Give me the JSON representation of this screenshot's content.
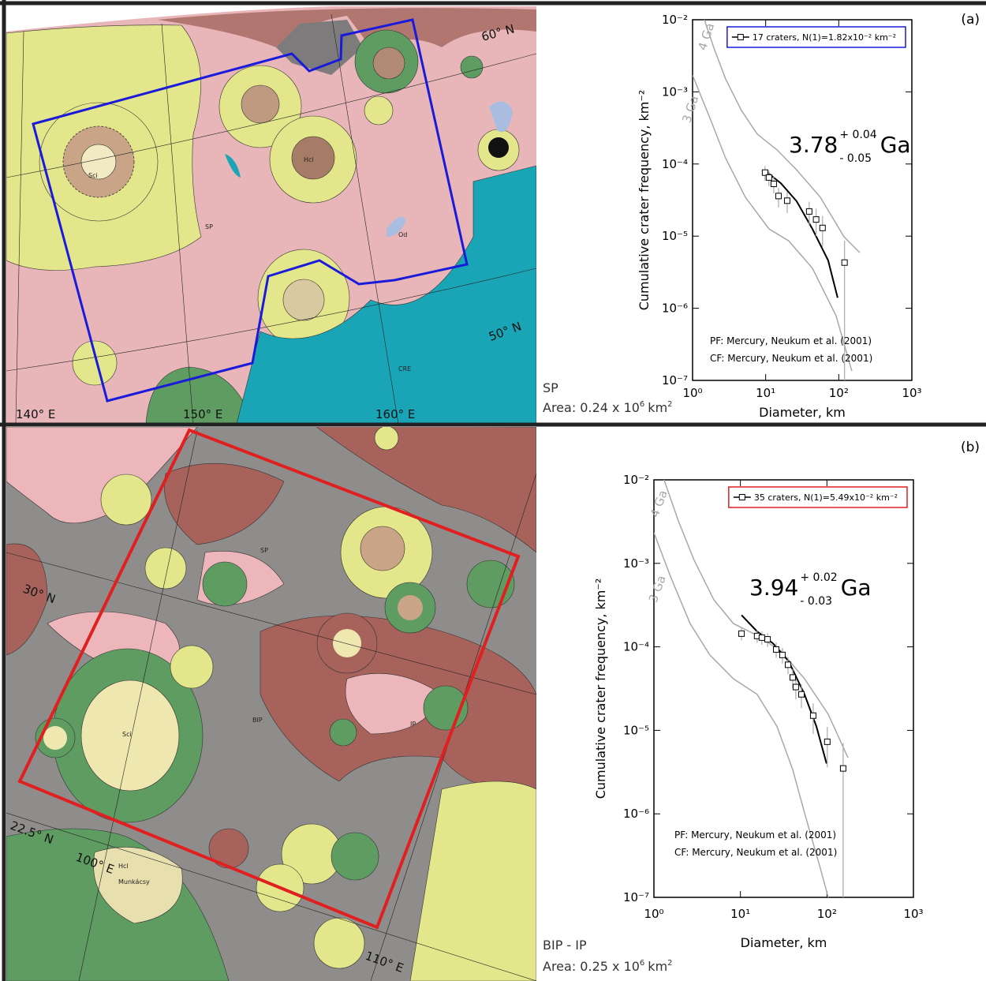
{
  "chart_data": [
    {
      "type": "scatter",
      "panel_label": "(a)",
      "unit_label": "SP",
      "area_label": {
        "text": "Area: 0.24 x 10",
        "exponent": "6",
        "unit": "km",
        "unit_exponent": "2"
      },
      "x_label": "Diameter, km",
      "y_label": "Cumulative crater frequency, km⁻²",
      "log_x": true,
      "log_y": true,
      "xlim": [
        1,
        1000
      ],
      "ylim": [
        1e-07,
        0.01
      ],
      "xticks": [
        {
          "value": 1,
          "label": "10⁰"
        },
        {
          "value": 10,
          "label": "10¹"
        },
        {
          "value": 100,
          "label": "10²"
        },
        {
          "value": 1000,
          "label": "10³"
        }
      ],
      "yticks": [
        {
          "value": 1e-07,
          "label": "10⁻⁷"
        },
        {
          "value": 1e-06,
          "label": "10⁻⁶"
        },
        {
          "value": 1e-05,
          "label": "10⁻⁵"
        },
        {
          "value": 0.0001,
          "label": "10⁻⁴"
        },
        {
          "value": 0.001,
          "label": "10⁻³"
        },
        {
          "value": 0.01,
          "label": "10⁻²"
        }
      ],
      "legend_color": "#1a1adb",
      "series": [
        {
          "name": "17 craters, N(1)=1.82x10⁻² km⁻²",
          "color": "#000000",
          "x": [
            9.8,
            11.1,
            12.9,
            15,
            19.7,
            39.4,
            49,
            60,
            120
          ],
          "values": [
            7.6e-05,
            6.5e-05,
            5.3e-05,
            3.6e-05,
            3.1e-05,
            2.2e-05,
            1.7e-05,
            1.3e-05,
            4.3e-06
          ],
          "errors": [
            1.8e-05,
            1.6e-05,
            1.4e-05,
            1.1e-05,
            1e-05,
            8e-06,
            7e-06,
            6e-06,
            4.3e-06
          ]
        }
      ],
      "fit": {
        "color": "#000000",
        "x": [
          9.8,
          16.2,
          26.5,
          43.6,
          71.6,
          96.6
        ],
        "values": [
          8.1e-05,
          5.4e-05,
          3.05e-05,
          1.26e-05,
          4.6e-06,
          1.4e-06
        ]
      },
      "isochrons": [
        {
          "name": "4 Ga",
          "color": "#a8a8a8",
          "x": [
            1.45,
            1.95,
            2.84,
            4.67,
            7.67,
            14.3,
            26.5,
            56,
            118,
            194
          ],
          "values": [
            0.01,
            0.0041,
            0.0015,
            0.00055,
            0.00026,
            0.000157,
            8.3e-05,
            3.45e-05,
            9.8e-06,
            5.9e-06
          ]
        },
        {
          "name": "3 Ga",
          "color": "#a8a8a8",
          "x": [
            1,
            1.73,
            2.84,
            5.28,
            11.1,
            20.7,
            43.6,
            91.9,
            151
          ],
          "values": [
            0.0017,
            0.00043,
            0.00012,
            3.45e-05,
            1.26e-05,
            8.6e-06,
            3.6e-06,
            7.9e-07,
            1.35e-07
          ]
        }
      ],
      "age": {
        "value": 3.78,
        "plus": "+ 0.04",
        "minus": "- 0.05",
        "unit": "Ga"
      },
      "notes": [
        "PF: Mercury, Neukum et al. (2001)",
        "CF: Mercury, Neukum et al. (2001)"
      ]
    },
    {
      "type": "scatter",
      "panel_label": "(b)",
      "unit_label": "BIP - IP",
      "area_label": {
        "text": "Area: 0.25 x 10",
        "exponent": "6",
        "unit": "km",
        "unit_exponent": "2"
      },
      "x_label": "Diameter, km",
      "y_label": "Cumulative crater frequency, km⁻²",
      "log_x": true,
      "log_y": true,
      "xlim": [
        1,
        1000
      ],
      "ylim": [
        1e-07,
        0.01
      ],
      "xticks": [
        {
          "value": 1,
          "label": "10⁰"
        },
        {
          "value": 10,
          "label": "10¹"
        },
        {
          "value": 100,
          "label": "10²"
        },
        {
          "value": 1000,
          "label": "10³"
        }
      ],
      "yticks": [
        {
          "value": 1e-07,
          "label": "10⁻⁷"
        },
        {
          "value": 1e-06,
          "label": "10⁻⁶"
        },
        {
          "value": 1e-05,
          "label": "10⁻⁵"
        },
        {
          "value": 0.0001,
          "label": "10⁻⁴"
        },
        {
          "value": 0.001,
          "label": "10⁻³"
        },
        {
          "value": 0.01,
          "label": "10⁻²"
        }
      ],
      "legend_color": "#e02020",
      "series": [
        {
          "name": "35 craters, N(1)=5.49x10⁻² km⁻²",
          "color": "#000000",
          "x": [
            10.3,
            15.6,
            17.7,
            20.6,
            25.9,
            30.6,
            35.5,
            40.2,
            43.7,
            50.7,
            69.4,
            101,
            154
          ],
          "values": [
            0.000144,
            0.000135,
            0.000129,
            0.000123,
            9.3e-05,
            8e-05,
            6.1e-05,
            4.3e-05,
            3.3e-05,
            2.7e-05,
            1.5e-05,
            7.3e-06,
            3.5e-06
          ],
          "errors": [
            2.4e-05,
            2.3e-05,
            2.3e-05,
            2.3e-05,
            1.9e-05,
            1.7e-05,
            1.4e-05,
            1.1e-05,
            9.5e-06,
            8.5e-06,
            6e-06,
            3.7e-06,
            3.5e-06
          ]
        }
      ],
      "fit": {
        "color": "#000000",
        "x": [
          10.3,
          15.6,
          23.8,
          36.2,
          55.1,
          75.5,
          99
        ],
        "values": [
          0.00024,
          0.000153,
          0.00011,
          6.7e-05,
          2.7e-05,
          1.12e-05,
          4e-06
        ]
      },
      "isochrons": [
        {
          "name": "4 Ga",
          "color": "#a8a8a8",
          "x": [
            1.31,
            1.92,
            2.92,
            4.93,
            8.3,
            15.6,
            29.4,
            55.1,
            103.5,
            175
          ],
          "values": [
            0.01,
            0.0032,
            0.00109,
            0.000366,
            0.00019,
            0.000137,
            8.9e-05,
            4.15e-05,
            1.56e-05,
            4.7e-06
          ]
        },
        {
          "name": "3 Ga",
          "color": "#a8a8a8",
          "x": [
            1,
            1.55,
            2.62,
            4.43,
            8.3,
            15.6,
            26.4,
            40.2,
            55.1,
            83.8,
            103.5
          ],
          "values": [
            0.00233,
            0.0007,
            0.00019,
            8e-05,
            4.15e-05,
            2.7e-05,
            1.12e-05,
            3.4e-06,
            1.03e-06,
            2.24e-07,
            1e-07
          ]
        }
      ],
      "age": {
        "value": 3.94,
        "plus": "+ 0.02",
        "minus": "- 0.03",
        "unit": "Ga"
      },
      "notes": [
        "PF: Mercury, Neukum et al. (2001)",
        "CF: Mercury, Neukum et al. (2001)"
      ]
    }
  ],
  "maps": [
    {
      "labels": [
        "60° N",
        "50° N",
        "140° E",
        "150° E",
        "160° E",
        "SP",
        "CRE",
        "Sci",
        "Hcl",
        "Od"
      ]
    },
    {
      "labels": [
        "30° N",
        "22.5° N",
        "100° E",
        "110° E",
        "BIP",
        "IP",
        "SP",
        "Sci",
        "Hcl",
        "Munkácsy"
      ]
    }
  ]
}
